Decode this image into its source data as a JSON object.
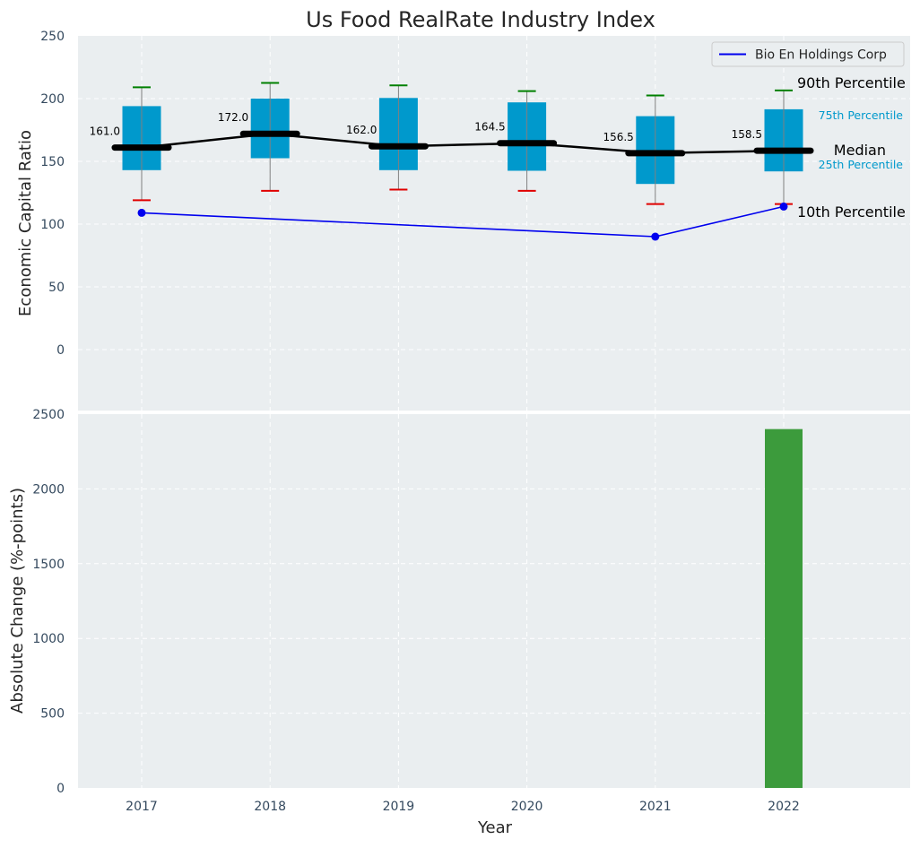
{
  "chart_data": [
    {
      "type": "box",
      "title": "Us Food RealRate Industry Index",
      "ylabel": "Economic Capital Ratio",
      "ylim": [
        0,
        250
      ],
      "yticks": [
        0,
        50,
        100,
        150,
        200,
        250
      ],
      "categories": [
        "2017",
        "2018",
        "2019",
        "2020",
        "2021",
        "2022"
      ],
      "grid": true,
      "legend_position": "top-right",
      "colors": {
        "panel": "#eaeef0",
        "box": "#0099cc",
        "whisker": "#808080",
        "p90_cap": "#008000",
        "p10_cap": "#e00000",
        "median_line": "#000000",
        "company_line": "#0000ee",
        "percentile_label_box": "#0099cc"
      },
      "boxes": [
        {
          "year": "2017",
          "p10": 119,
          "p25": 143,
          "median": 161.0,
          "p75": 194,
          "p90": 209
        },
        {
          "year": "2018",
          "p10": 126.5,
          "p25": 152.5,
          "median": 172.0,
          "p75": 200,
          "p90": 212.5
        },
        {
          "year": "2019",
          "p10": 127.5,
          "p25": 143,
          "median": 162.0,
          "p75": 200.5,
          "p90": 210.5
        },
        {
          "year": "2020",
          "p10": 126.5,
          "p25": 142.5,
          "median": 164.5,
          "p75": 197,
          "p90": 206
        },
        {
          "year": "2021",
          "p10": 116,
          "p25": 132,
          "median": 156.5,
          "p75": 186,
          "p90": 202.5
        },
        {
          "year": "2022",
          "p10": 116,
          "p25": 142,
          "median": 158.5,
          "p75": 191.5,
          "p90": 206.5
        }
      ],
      "median_labels": [
        "161.0",
        "172.0",
        "162.0",
        "164.5",
        "156.5",
        "158.5"
      ],
      "series": [
        {
          "name": "Bio En Holdings Corp",
          "points": [
            {
              "x": "2017",
              "y": 109
            },
            {
              "x": "2021",
              "y": 90
            },
            {
              "x": "2022",
              "y": 114
            }
          ]
        }
      ],
      "annotations": {
        "p90": "90th Percentile",
        "p75": "75th Percentile",
        "median": "Median",
        "p25": "25th Percentile",
        "p10": "10th Percentile"
      }
    },
    {
      "type": "bar",
      "xlabel": "Year",
      "ylabel": "Absolute Change (%-points)",
      "ylim": [
        0,
        2500
      ],
      "yticks": [
        0,
        500,
        1000,
        1500,
        2000,
        2500
      ],
      "categories": [
        "2017",
        "2018",
        "2019",
        "2020",
        "2021",
        "2022"
      ],
      "values": [
        0,
        0,
        0,
        0,
        0,
        2400
      ],
      "grid": true,
      "colors": {
        "bar": "#3c9b3c",
        "panel": "#eaeef0"
      }
    }
  ]
}
